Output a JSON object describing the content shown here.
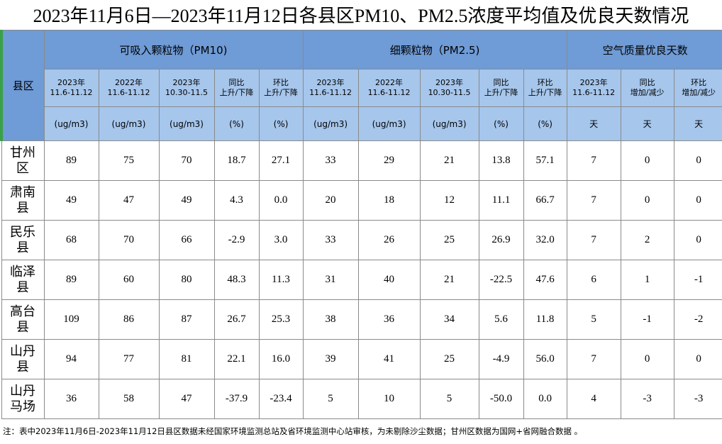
{
  "header": {
    "title": "2023年11月6日—2023年11月12日各县区PM10、PM2.5浓度平均值及优良天数情况"
  },
  "table": {
    "county_header": "县区",
    "groups": [
      "可吸入颗粒物（PM10)",
      "细颗粒物（PM2.5)",
      "空气质量优良天数"
    ],
    "subheaders": [
      [
        "2023年",
        "11.6-11.12"
      ],
      [
        "2022年",
        "11.6-11.12"
      ],
      [
        "2023年",
        "10.30-11.5"
      ],
      [
        "同比",
        "上升/下降"
      ],
      [
        "环比",
        "上升/下降"
      ],
      [
        "2023年",
        "11.6-11.12"
      ],
      [
        "2022年",
        "11.6-11.12"
      ],
      [
        "2023年",
        "10.30-11.5"
      ],
      [
        "同比",
        "上升/下降"
      ],
      [
        "环比",
        "上升/下降"
      ],
      [
        "2023年",
        "11.6-11.12"
      ],
      [
        "同比",
        "增加/减少"
      ],
      [
        "环比",
        "增加/减少"
      ]
    ],
    "units": [
      "(ug/m3)",
      "(ug/m3)",
      "(ug/m3)",
      "(%)",
      "(%)",
      "(ug/m3)",
      "(ug/m3)",
      "(ug/m3)",
      "(%)",
      "(%)",
      "天",
      "天",
      "天"
    ],
    "rows": [
      [
        "甘州区",
        "89",
        "75",
        "70",
        "18.7",
        "27.1",
        "33",
        "29",
        "21",
        "13.8",
        "57.1",
        "7",
        "0",
        "0"
      ],
      [
        "肃南县",
        "49",
        "47",
        "49",
        "4.3",
        "0.0",
        "20",
        "18",
        "12",
        "11.1",
        "66.7",
        "7",
        "0",
        "0"
      ],
      [
        "民乐县",
        "68",
        "70",
        "66",
        "-2.9",
        "3.0",
        "33",
        "26",
        "25",
        "26.9",
        "32.0",
        "7",
        "2",
        "0"
      ],
      [
        "临泽县",
        "89",
        "60",
        "80",
        "48.3",
        "11.3",
        "31",
        "40",
        "21",
        "-22.5",
        "47.6",
        "6",
        "1",
        "-1"
      ],
      [
        "高台县",
        "109",
        "86",
        "87",
        "26.7",
        "25.3",
        "38",
        "36",
        "34",
        "5.6",
        "11.8",
        "5",
        "-1",
        "-2"
      ],
      [
        "山丹县",
        "94",
        "77",
        "81",
        "22.1",
        "16.0",
        "39",
        "41",
        "25",
        "-4.9",
        "56.0",
        "7",
        "0",
        "0"
      ],
      [
        "山丹马场",
        "36",
        "58",
        "47",
        "-37.9",
        "-23.4",
        "5",
        "10",
        "5",
        "-50.0",
        "0.0",
        "4",
        "-3",
        "-3"
      ]
    ]
  },
  "footer": {
    "note": "注：表中2023年11月6日-2023年11月12日县区数据未经国家环境监测总站及省环境监测中心站审核，为未剔除沙尘数据；甘州区数据为国网+省网融合数据 。"
  }
}
